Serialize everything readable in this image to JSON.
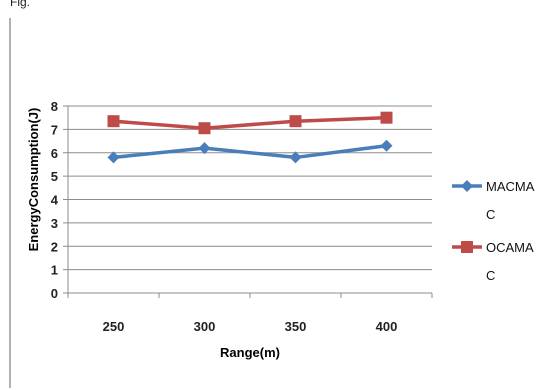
{
  "page": {
    "top_label": "Fig."
  },
  "chart_data": {
    "type": "line",
    "title": "",
    "xlabel": "Range(m)",
    "ylabel": "EnergyConsumption(J)",
    "categories": [
      "250",
      "300",
      "350",
      "400"
    ],
    "ylim": [
      0,
      8
    ],
    "yticks": [
      "0",
      "1",
      "2",
      "3",
      "4",
      "5",
      "6",
      "7",
      "8"
    ],
    "grid": "horizontal",
    "legend_position": "right",
    "series": [
      {
        "name_lines": [
          "MACMA",
          "C"
        ],
        "values": [
          5.8,
          6.2,
          5.8,
          6.3
        ],
        "color": "#4a7ebb",
        "marker": "diamond"
      },
      {
        "name_lines": [
          "OCAMA",
          "C"
        ],
        "values": [
          7.35,
          7.05,
          7.35,
          7.5
        ],
        "color": "#be4b48",
        "marker": "square"
      }
    ]
  }
}
